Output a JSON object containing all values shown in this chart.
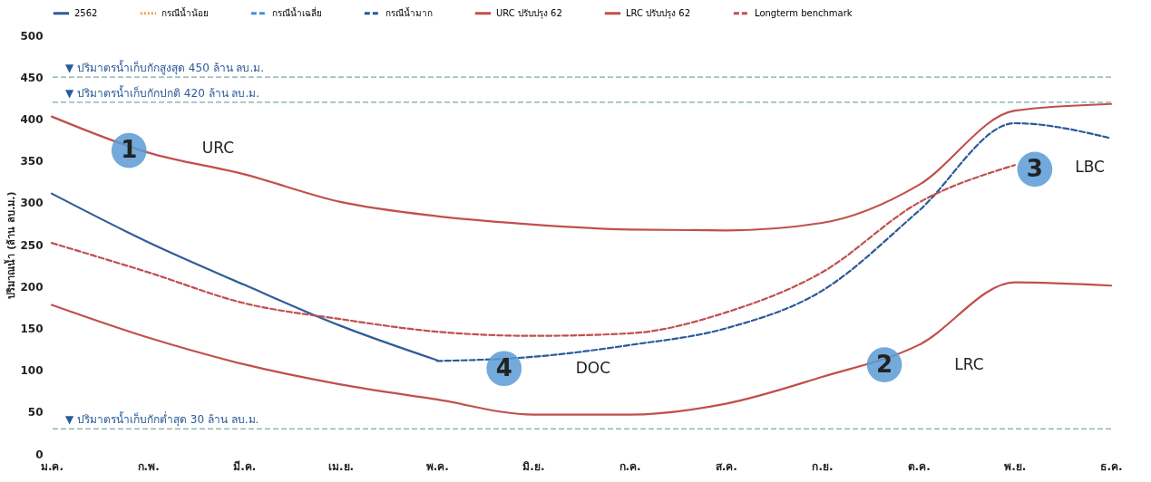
{
  "chart_data": {
    "type": "line",
    "ylabel": "ปริมาณน้ำ (ล้าน ลบ.ม.)",
    "categories": [
      "ม.ค.",
      "ก.พ.",
      "มี.ค.",
      "เม.ย.",
      "พ.ค.",
      "มิ.ย.",
      "ก.ค.",
      "ส.ค.",
      "ก.ย.",
      "ต.ค.",
      "พ.ย.",
      "ธ.ค."
    ],
    "ylim": [
      0,
      500
    ],
    "yticks": [
      0,
      50,
      100,
      150,
      200,
      250,
      300,
      350,
      400,
      450,
      500
    ],
    "grid": false,
    "legend": "top",
    "series": [
      {
        "name": "2562",
        "color": "#2e5d9a",
        "line_style": "solid",
        "values": [
          311,
          253,
          202,
          153,
          112,
          null,
          null,
          null,
          null,
          null,
          null,
          null
        ]
      },
      {
        "name": "กรณีน้ำน้อย",
        "color": "#f0a050",
        "line_style": "dotted",
        "values": [
          null,
          null,
          null,
          null,
          null,
          null,
          null,
          null,
          null,
          null,
          null,
          null
        ]
      },
      {
        "name": "กรณีน้ำเฉลี่ย",
        "color": "#4a90d0",
        "line_style": "dashed",
        "values": [
          null,
          null,
          null,
          null,
          null,
          null,
          null,
          null,
          null,
          null,
          null,
          null
        ]
      },
      {
        "name": "กรณีน้ำมาก",
        "color": "#2a5a9a",
        "line_style": "dashed",
        "values": [
          null,
          null,
          null,
          null,
          111,
          116,
          130,
          150,
          195,
          290,
          395,
          377
        ]
      },
      {
        "name": "URC ปรับปรุง 62",
        "color": "#c0504d",
        "line_style": "solid",
        "values": [
          403,
          360,
          334,
          301,
          284,
          274,
          268,
          267,
          276,
          321,
          410,
          418
        ]
      },
      {
        "name": "LRC ปรับปรุง 62",
        "color": "#c0504d",
        "line_style": "solid",
        "values": [
          178,
          139,
          107,
          83,
          65,
          47,
          47,
          60,
          92,
          130,
          205,
          201
        ]
      },
      {
        "name": "Longterm benchmark",
        "color": "#c0504d",
        "line_style": "dashed",
        "values": [
          252,
          217,
          180,
          161,
          146,
          141,
          144,
          169,
          217,
          300,
          345,
          null
        ]
      }
    ],
    "ref_lines": [
      {
        "axis": "y",
        "value": 450,
        "label": "▼ ปริมาตรน้ำเก็บกักสูงสุด  450 ล้าน ลบ.ม.",
        "color": "#7fa7a7",
        "line_style": "dashed"
      },
      {
        "axis": "y",
        "value": 420,
        "label": "▼ ปริมาตรน้ำเก็บกักปกติ 420 ล้าน ลบ.ม.",
        "color": "#7fa7a7",
        "line_style": "dashed"
      },
      {
        "axis": "y",
        "value": 30,
        "label": "▼ ปริมาตรน้ำเก็บกักต่ำสุด 30 ล้าน ลบ.ม.",
        "color": "#7fa7a7",
        "line_style": "dashed"
      }
    ],
    "annotations": [
      "1",
      "URC",
      "2",
      "LRC",
      "3",
      "LBC",
      "4",
      "DOC"
    ]
  }
}
